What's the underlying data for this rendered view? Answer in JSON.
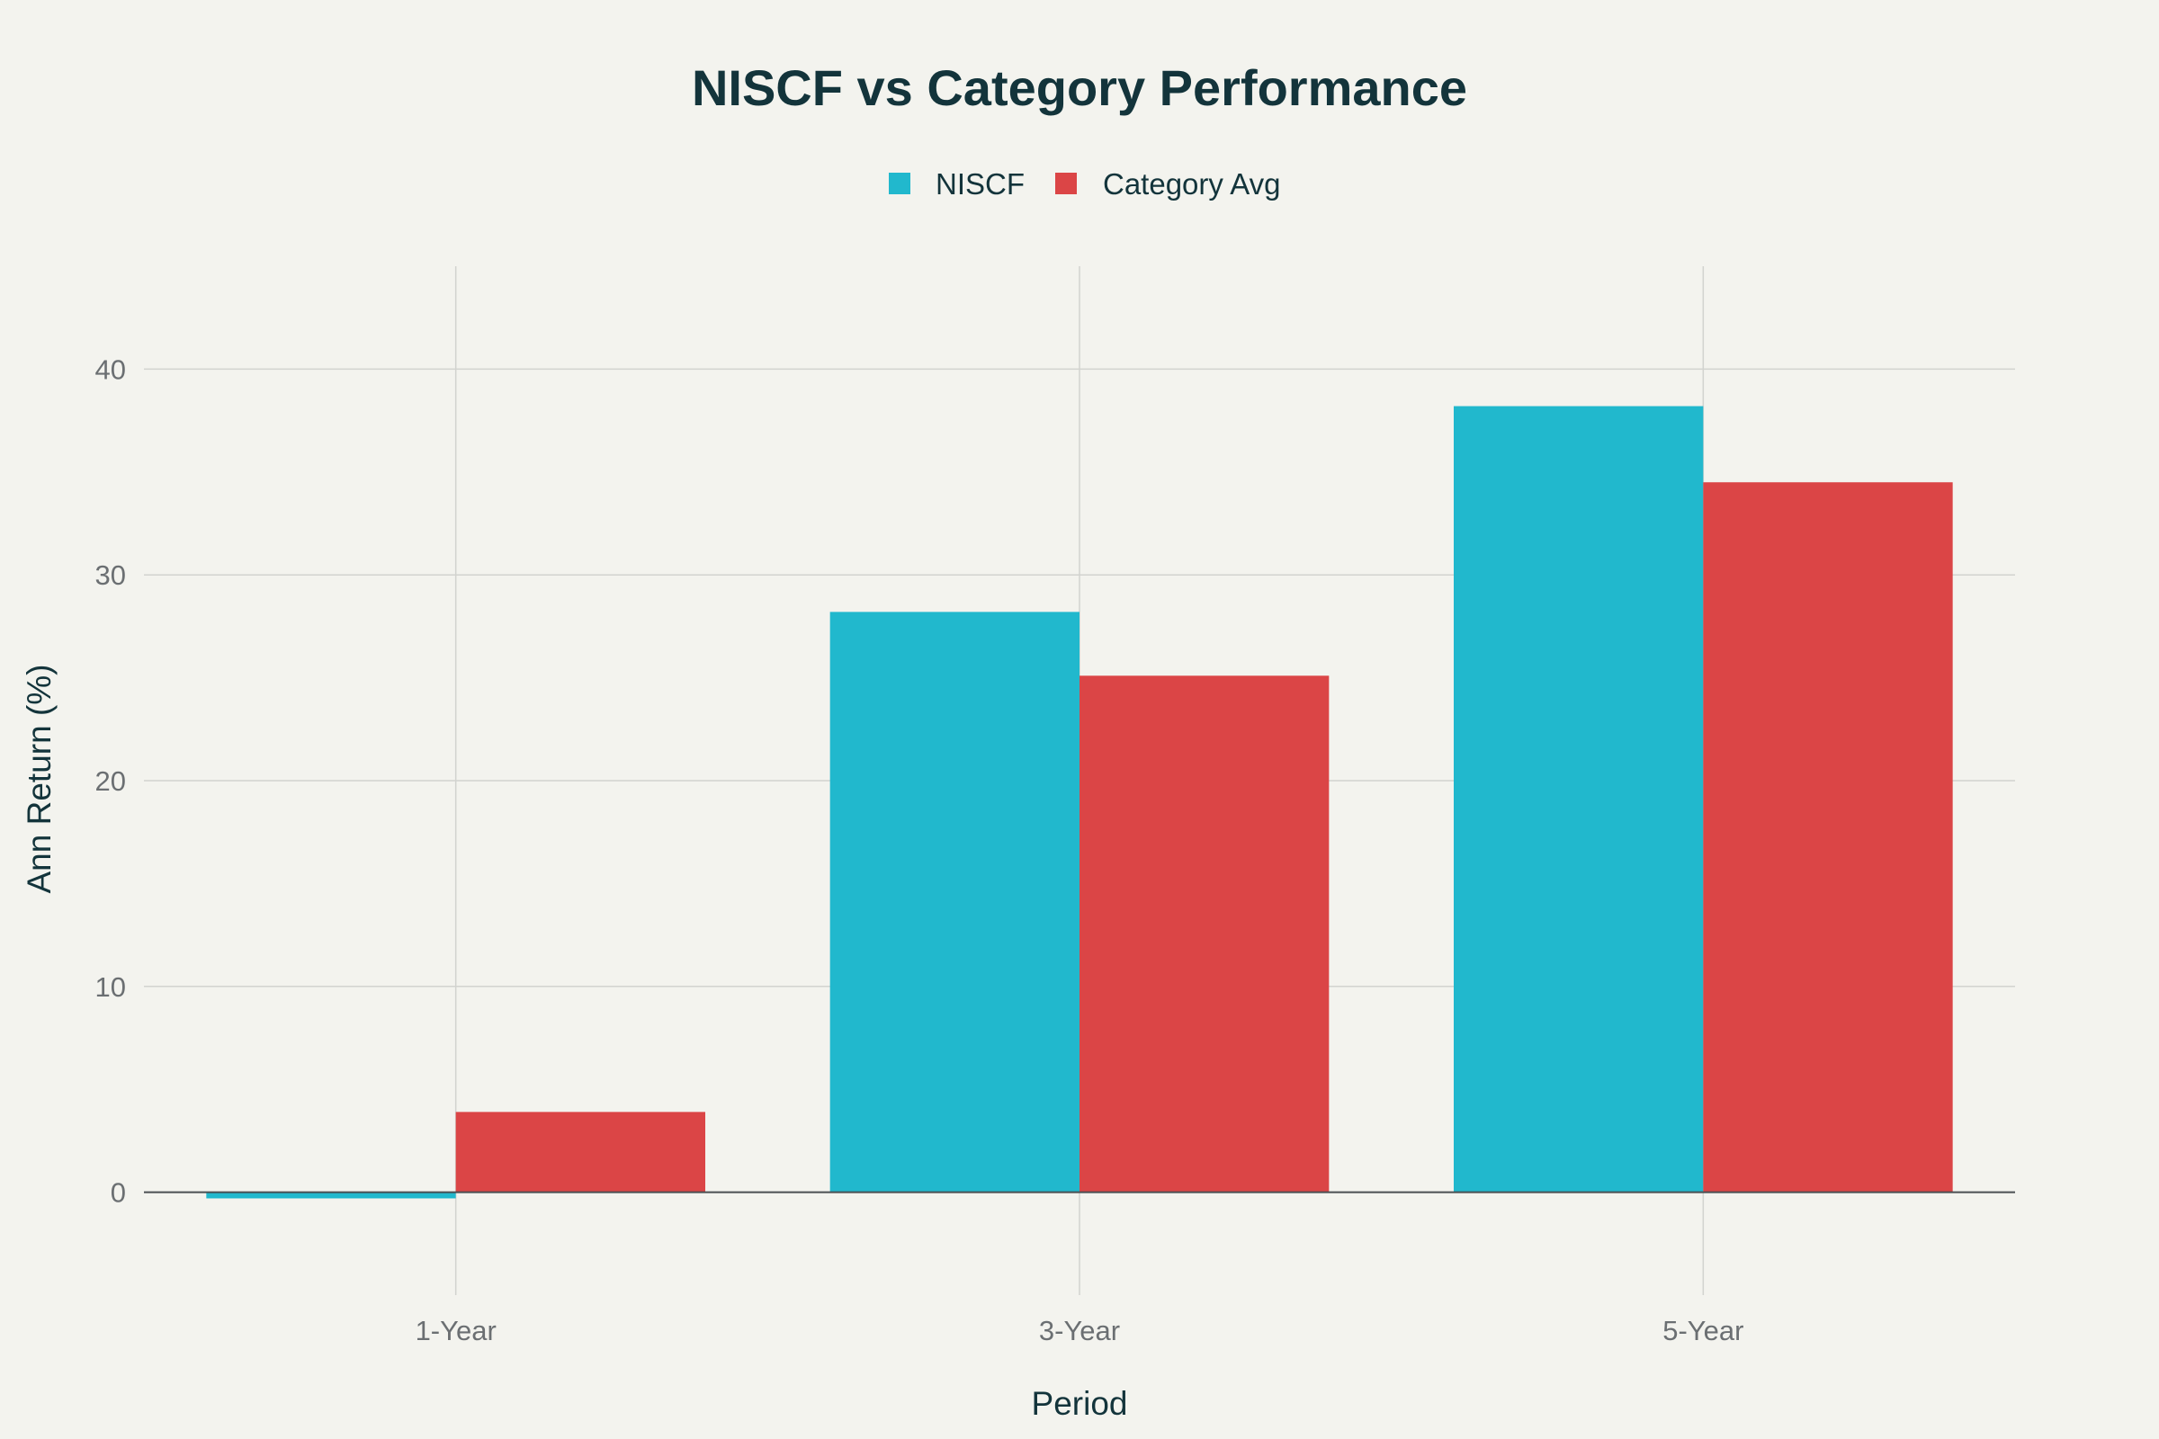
{
  "chart_data": {
    "type": "bar",
    "title": "NISCF vs Category Performance",
    "xlabel": "Period",
    "ylabel": "Ann Return (%)",
    "categories": [
      "1-Year",
      "3-Year",
      "5-Year"
    ],
    "series": [
      {
        "name": "NISCF",
        "color": "#21b8cd",
        "values": [
          -0.3,
          28.2,
          38.2
        ]
      },
      {
        "name": "Category Avg",
        "color": "#db4546",
        "values": [
          3.9,
          25.1,
          34.5
        ]
      }
    ],
    "ylim": [
      -5,
      45
    ],
    "yticks": [
      0,
      10,
      20,
      30,
      40
    ],
    "grid": true,
    "legend_position": "top-center"
  }
}
